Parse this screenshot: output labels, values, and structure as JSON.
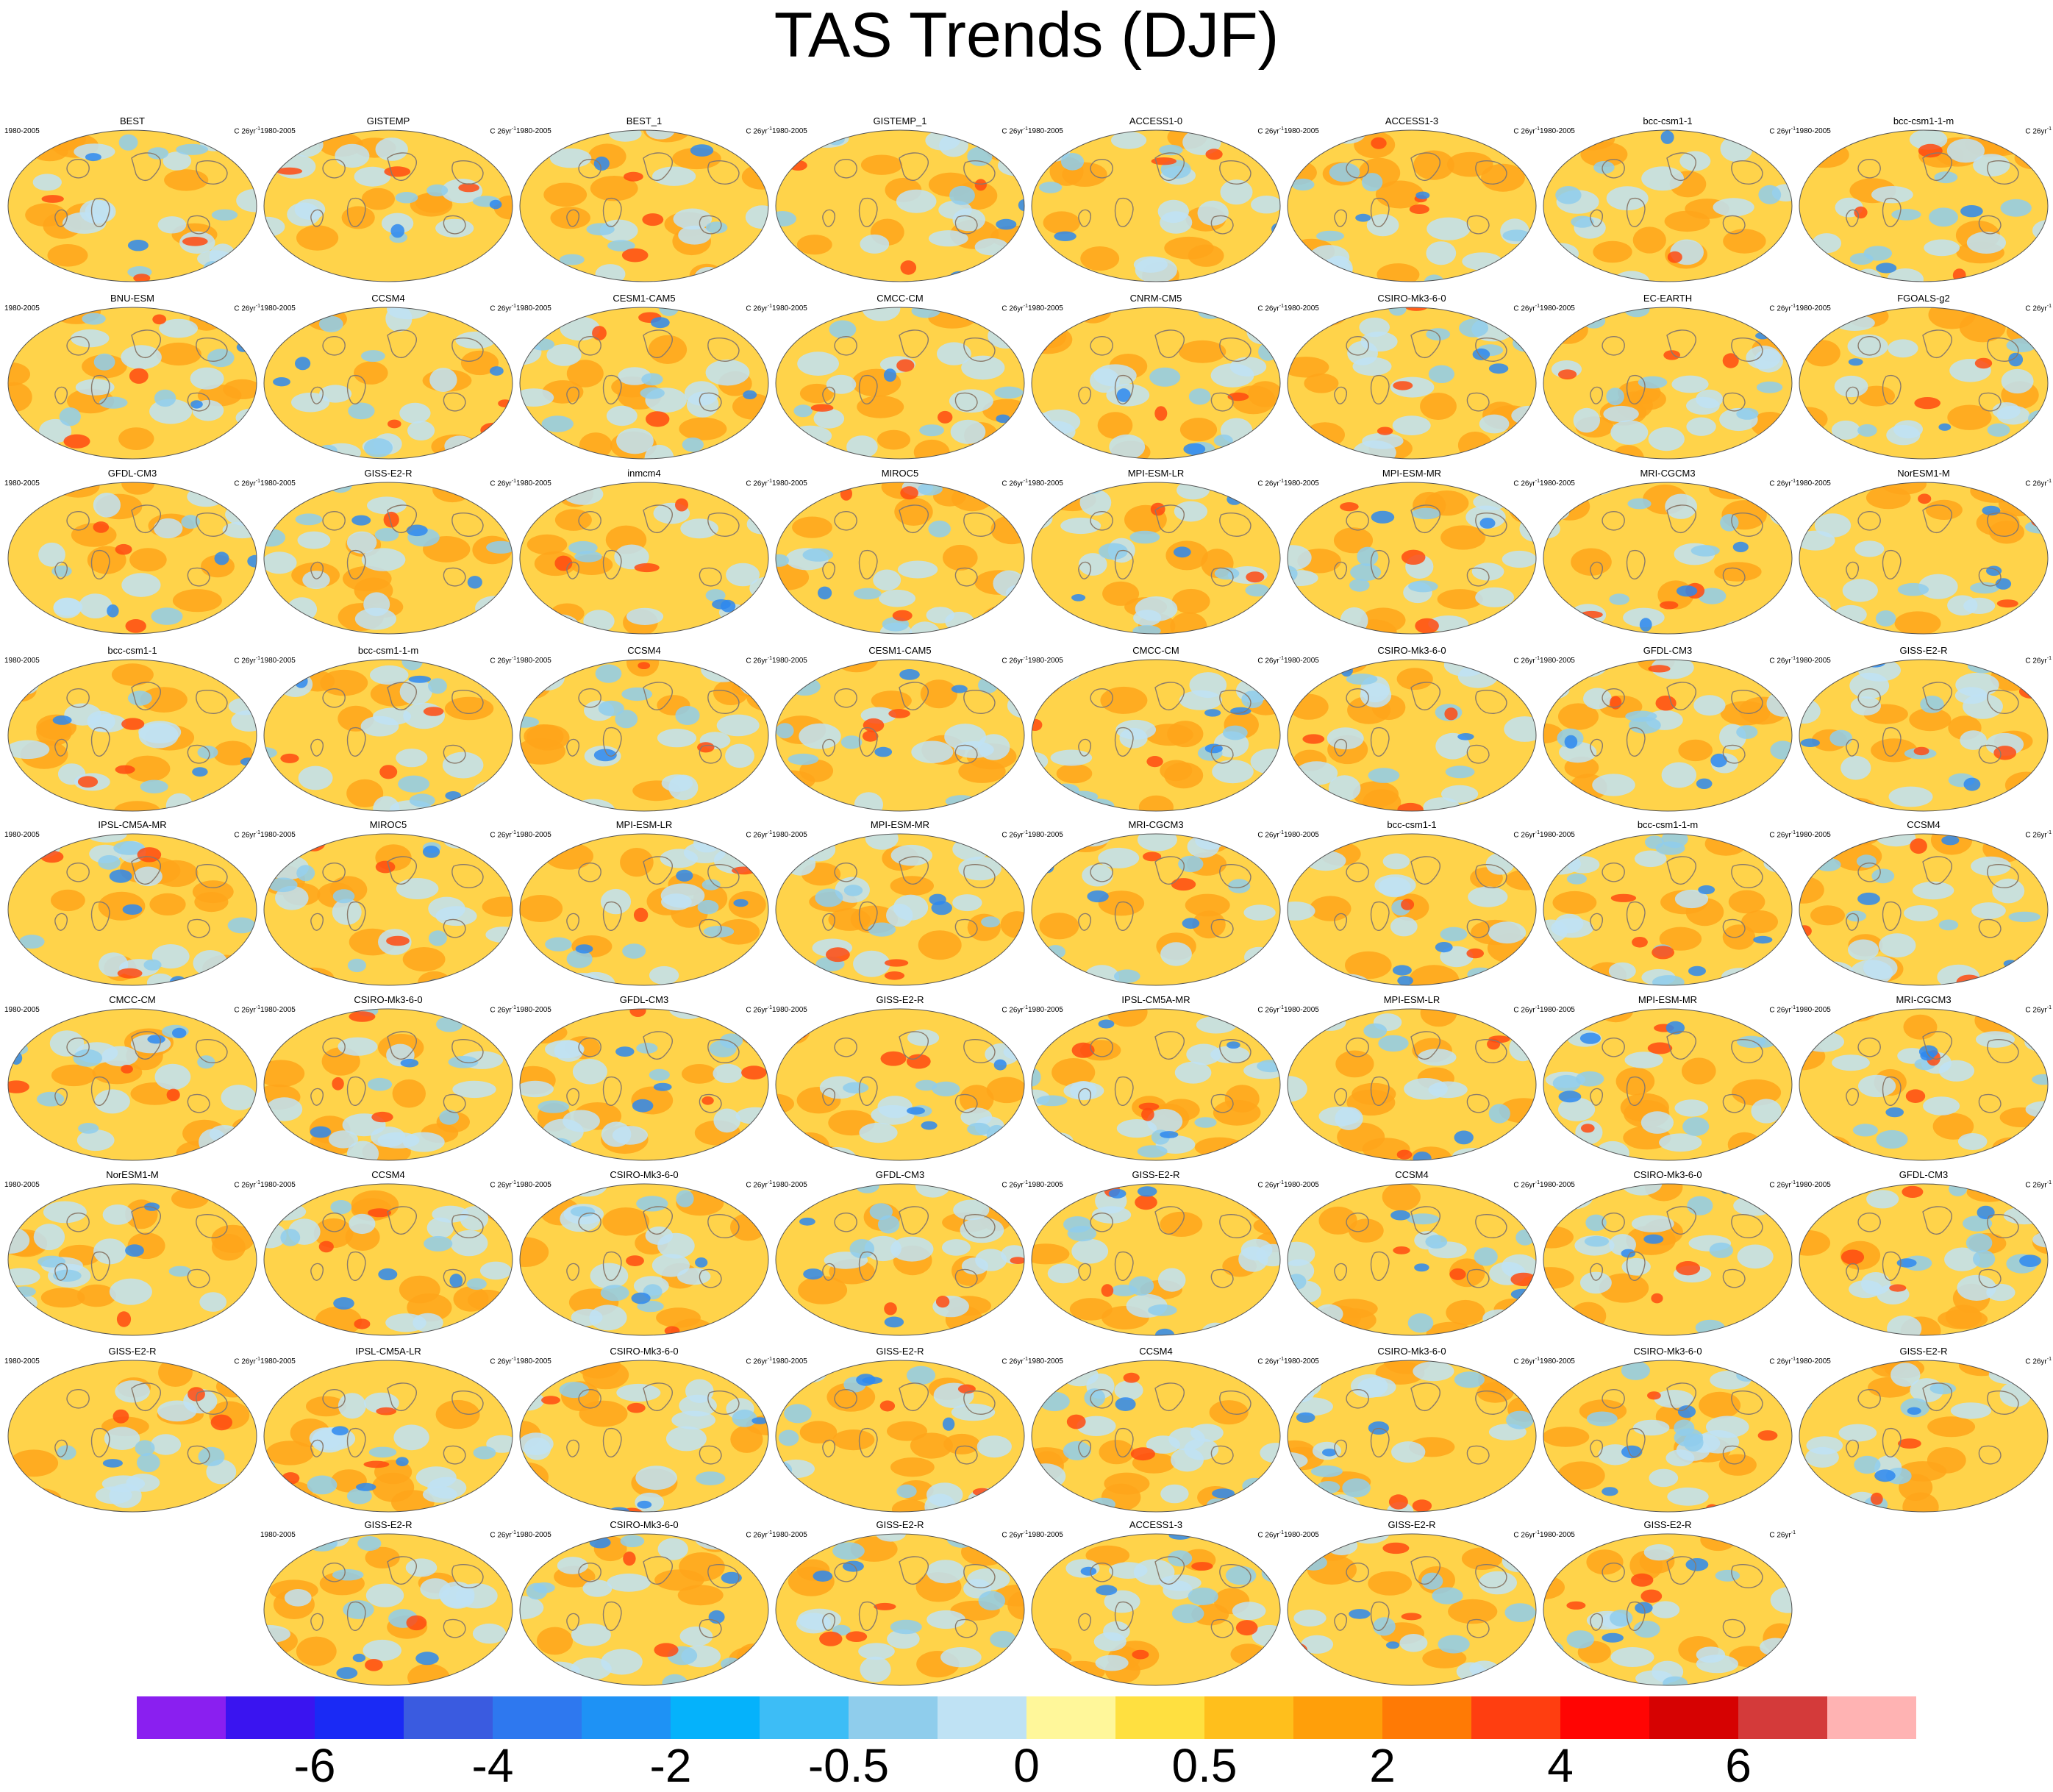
{
  "title": "TAS Trends (DJF)",
  "panel_period": "1980-2005",
  "panel_units": "C 26yr",
  "panel_units_exponent": "-1",
  "panel_rows": [
    [
      "BEST",
      "GISTEMP",
      "BEST_1",
      "GISTEMP_1",
      "ACCESS1-0",
      "ACCESS1-3",
      "bcc-csm1-1",
      "bcc-csm1-1-m"
    ],
    [
      "BNU-ESM",
      "CCSM4",
      "CESM1-CAM5",
      "CMCC-CM",
      "CNRM-CM5",
      "CSIRO-Mk3-6-0",
      "EC-EARTH",
      "FGOALS-g2"
    ],
    [
      "GFDL-CM3",
      "GISS-E2-R",
      "inmcm4",
      "MIROC5",
      "MPI-ESM-LR",
      "MPI-ESM-MR",
      "MRI-CGCM3",
      "NorESM1-M"
    ],
    [
      "bcc-csm1-1",
      "bcc-csm1-1-m",
      "CCSM4",
      "CESM1-CAM5",
      "CMCC-CM",
      "CSIRO-Mk3-6-0",
      "GFDL-CM3",
      "GISS-E2-R"
    ],
    [
      "IPSL-CM5A-MR",
      "MIROC5",
      "MPI-ESM-LR",
      "MPI-ESM-MR",
      "MRI-CGCM3",
      "bcc-csm1-1",
      "bcc-csm1-1-m",
      "CCSM4"
    ],
    [
      "CMCC-CM",
      "CSIRO-Mk3-6-0",
      "GFDL-CM3",
      "GISS-E2-R",
      "IPSL-CM5A-MR",
      "MPI-ESM-LR",
      "MPI-ESM-MR",
      "MRI-CGCM3"
    ],
    [
      "NorESM1-M",
      "CCSM4",
      "CSIRO-Mk3-6-0",
      "GFDL-CM3",
      "GISS-E2-R",
      "CCSM4",
      "CSIRO-Mk3-6-0",
      "GFDL-CM3"
    ],
    [
      "GISS-E2-R",
      "IPSL-CM5A-LR",
      "CSIRO-Mk3-6-0",
      "GISS-E2-R",
      "CCSM4",
      "CSIRO-Mk3-6-0",
      "CSIRO-Mk3-6-0",
      "GISS-E2-R"
    ],
    [
      "GISS-E2-R",
      "CSIRO-Mk3-6-0",
      "GISS-E2-R",
      "ACCESS1-3",
      "GISS-E2-R",
      "GISS-E2-R"
    ]
  ],
  "colorbar": {
    "colors": [
      "#8a1ff0",
      "#3a14f0",
      "#1a2af5",
      "#3a5be0",
      "#2e78ef",
      "#1e92f5",
      "#05b2fb",
      "#3dbdf6",
      "#8fcdec",
      "#bfe2f4",
      "#fff79a",
      "#ffe040",
      "#ffbf1c",
      "#ff9f0a",
      "#ff7a05",
      "#ff3e10",
      "#ff0503",
      "#d60202",
      "#d43a3a",
      "#ffb3b3"
    ],
    "tick_labels": [
      "-6",
      "-4",
      "-2",
      "-0.5",
      "0",
      "0.5",
      "2",
      "4",
      "6"
    ],
    "tick_boundaries": [
      2,
      4,
      6,
      8,
      10,
      12,
      14,
      16,
      18
    ]
  },
  "palette": {
    "ocean": "#ffd34a",
    "coast": "#8a7a6a",
    "cool_light": "#bfe2f4",
    "cool_mid": "#8fcdec",
    "cool_dark": "#2e88ef",
    "warm_mid": "#ffa51a",
    "warm_dark": "#ff4a10"
  }
}
